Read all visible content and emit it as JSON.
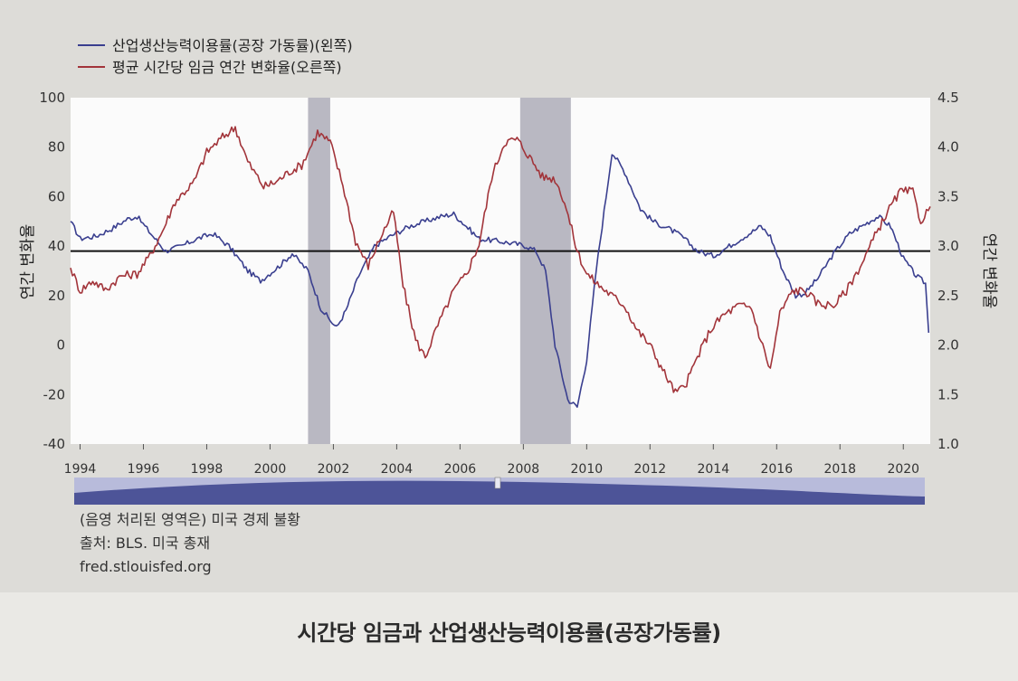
{
  "caption": "시간당 임금과 산업생산능력이용률(공장가동률)",
  "notes": {
    "shading": "(음영 처리된 영역은) 미국 경제 불황",
    "source": "출처: BLS. 미국 총재",
    "url": "fred.stlouisfed.org"
  },
  "colors": {
    "capacity": "#3a3f8f",
    "wages": "#a2343a",
    "recession": "#b9b8c2",
    "plot_bg": "#fbfbfb",
    "reference": "#111111"
  },
  "chart_data": {
    "type": "line",
    "legend_position": "top-left",
    "grid": false,
    "ylabel_left": "연간 변화율",
    "ylabel_right": "연간 변화율",
    "xlim": [
      1993.7,
      2020.85
    ],
    "ylim_left": [
      -40,
      100
    ],
    "ylim_right": [
      1.0,
      4.5
    ],
    "x_ticks": [
      1994,
      1996,
      1998,
      2000,
      2002,
      2004,
      2006,
      2008,
      2010,
      2012,
      2014,
      2016,
      2018,
      2020
    ],
    "y_ticks_left": [
      100,
      80,
      60,
      40,
      20,
      0,
      -20,
      -40
    ],
    "y_ticks_right": [
      "4.5",
      "4.0",
      "3.5",
      "3.0",
      "2.5",
      "2.0",
      "1.5",
      "1.0"
    ],
    "reference_line_left": 38,
    "recessions": [
      [
        2001.2,
        2001.9
      ],
      [
        2007.9,
        2009.5
      ]
    ],
    "series": [
      {
        "name": "산업생산능력이용률(공장 가동률)(왼쪽)",
        "axis": "left",
        "color": "#3a3f8f",
        "points": [
          [
            1993.7,
            50
          ],
          [
            1994.0,
            43
          ],
          [
            1994.5,
            44
          ],
          [
            1995.0,
            47
          ],
          [
            1995.5,
            51
          ],
          [
            1995.8,
            52
          ],
          [
            1996.3,
            44
          ],
          [
            1996.7,
            38
          ],
          [
            1997.2,
            40
          ],
          [
            1997.7,
            43
          ],
          [
            1998.2,
            45
          ],
          [
            1998.7,
            40
          ],
          [
            1999.3,
            30
          ],
          [
            1999.7,
            26
          ],
          [
            2000.3,
            32
          ],
          [
            2000.7,
            37
          ],
          [
            2001.2,
            30
          ],
          [
            2001.6,
            15
          ],
          [
            2001.9,
            10
          ],
          [
            2002.1,
            7
          ],
          [
            2002.4,
            14
          ],
          [
            2002.8,
            28
          ],
          [
            2003.3,
            40
          ],
          [
            2003.8,
            44
          ],
          [
            2004.4,
            48
          ],
          [
            2004.9,
            50
          ],
          [
            2005.4,
            52
          ],
          [
            2005.8,
            53
          ],
          [
            2006.2,
            48
          ],
          [
            2006.6,
            43
          ],
          [
            2007.2,
            42
          ],
          [
            2007.7,
            41
          ],
          [
            2008.1,
            40
          ],
          [
            2008.4,
            38
          ],
          [
            2008.7,
            30
          ],
          [
            2009.0,
            0
          ],
          [
            2009.4,
            -22
          ],
          [
            2009.7,
            -25
          ],
          [
            2010.0,
            -6
          ],
          [
            2010.3,
            30
          ],
          [
            2010.8,
            78
          ],
          [
            2011.2,
            70
          ],
          [
            2011.7,
            55
          ],
          [
            2012.1,
            50
          ],
          [
            2012.6,
            47
          ],
          [
            2013.0,
            44
          ],
          [
            2013.5,
            38
          ],
          [
            2014.0,
            36
          ],
          [
            2014.5,
            40
          ],
          [
            2015.0,
            44
          ],
          [
            2015.5,
            48
          ],
          [
            2015.8,
            44
          ],
          [
            2016.2,
            30
          ],
          [
            2016.6,
            20
          ],
          [
            2016.9,
            21
          ],
          [
            2017.3,
            27
          ],
          [
            2017.8,
            37
          ],
          [
            2018.3,
            45
          ],
          [
            2018.8,
            49
          ],
          [
            2019.2,
            52
          ],
          [
            2019.6,
            48
          ],
          [
            2020.0,
            35
          ],
          [
            2020.4,
            28
          ],
          [
            2020.7,
            25
          ],
          [
            2020.8,
            5
          ]
        ]
      },
      {
        "name": "평균 시간당 임금 연간 변화율(오른쪽)",
        "axis": "right",
        "color": "#a2343a",
        "points": [
          [
            1993.7,
            2.78
          ],
          [
            1994.0,
            2.55
          ],
          [
            1994.4,
            2.65
          ],
          [
            1994.8,
            2.56
          ],
          [
            1995.3,
            2.7
          ],
          [
            1995.8,
            2.72
          ],
          [
            1996.2,
            2.9
          ],
          [
            1996.6,
            3.15
          ],
          [
            1997.0,
            3.45
          ],
          [
            1997.6,
            3.65
          ],
          [
            1998.0,
            3.95
          ],
          [
            1998.5,
            4.1
          ],
          [
            1998.9,
            4.2
          ],
          [
            1999.3,
            3.85
          ],
          [
            1999.8,
            3.6
          ],
          [
            2000.2,
            3.65
          ],
          [
            2000.6,
            3.75
          ],
          [
            2001.0,
            3.82
          ],
          [
            2001.5,
            4.15
          ],
          [
            2001.9,
            4.05
          ],
          [
            2002.3,
            3.62
          ],
          [
            2002.7,
            3.05
          ],
          [
            2003.1,
            2.8
          ],
          [
            2003.5,
            3.1
          ],
          [
            2003.9,
            3.35
          ],
          [
            2004.2,
            2.6
          ],
          [
            2004.6,
            2.05
          ],
          [
            2004.9,
            1.88
          ],
          [
            2005.3,
            2.2
          ],
          [
            2005.8,
            2.55
          ],
          [
            2006.2,
            2.72
          ],
          [
            2006.6,
            3.02
          ],
          [
            2007.0,
            3.7
          ],
          [
            2007.4,
            4.05
          ],
          [
            2007.8,
            4.08
          ],
          [
            2008.2,
            3.9
          ],
          [
            2008.6,
            3.7
          ],
          [
            2009.0,
            3.68
          ],
          [
            2009.3,
            3.45
          ],
          [
            2009.7,
            2.95
          ],
          [
            2010.0,
            2.72
          ],
          [
            2010.4,
            2.6
          ],
          [
            2010.8,
            2.5
          ],
          [
            2011.2,
            2.4
          ],
          [
            2011.6,
            2.15
          ],
          [
            2012.0,
            2.0
          ],
          [
            2012.4,
            1.75
          ],
          [
            2012.8,
            1.52
          ],
          [
            2013.1,
            1.58
          ],
          [
            2013.5,
            1.88
          ],
          [
            2013.9,
            2.15
          ],
          [
            2014.3,
            2.3
          ],
          [
            2014.8,
            2.4
          ],
          [
            2015.2,
            2.38
          ],
          [
            2015.5,
            2.05
          ],
          [
            2015.8,
            1.75
          ],
          [
            2016.1,
            2.32
          ],
          [
            2016.5,
            2.55
          ],
          [
            2016.9,
            2.55
          ],
          [
            2017.3,
            2.42
          ],
          [
            2017.8,
            2.4
          ],
          [
            2018.2,
            2.55
          ],
          [
            2018.7,
            2.83
          ],
          [
            2019.1,
            3.1
          ],
          [
            2019.5,
            3.35
          ],
          [
            2019.9,
            3.55
          ],
          [
            2020.3,
            3.55
          ],
          [
            2020.55,
            3.25
          ],
          [
            2020.85,
            3.4
          ]
        ]
      }
    ]
  }
}
